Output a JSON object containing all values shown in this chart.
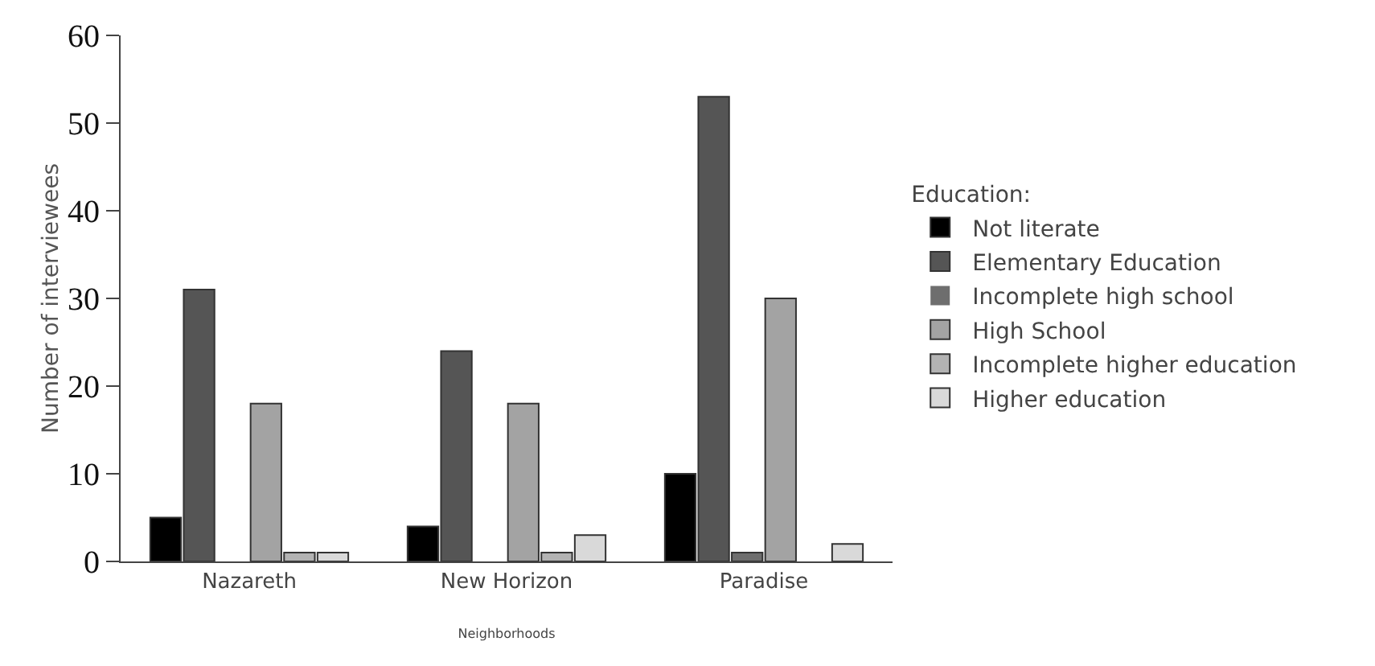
{
  "chart_data": {
    "type": "bar",
    "xlabel": "Neighborhoods",
    "ylabel": "Number of interviewees",
    "legend_title": "Education:",
    "categories": [
      "Nazareth",
      "New Horizon",
      "Paradise"
    ],
    "series": [
      {
        "name": "Not literate",
        "color": "#000000",
        "values": [
          5,
          4,
          10
        ]
      },
      {
        "name": "Elementary Education",
        "color": "#555555",
        "values": [
          31,
          24,
          53
        ]
      },
      {
        "name": "Incomplete high school",
        "color": "#6e6e6e",
        "values": [
          0,
          0,
          1
        ]
      },
      {
        "name": "High School",
        "color": "#a3a3a3",
        "values": [
          18,
          18,
          30
        ]
      },
      {
        "name": "Incomplete higher education",
        "color": "#b3b3b3",
        "values": [
          1,
          1,
          0
        ]
      },
      {
        "name": "Higher education",
        "color": "#d9d9d9",
        "values": [
          1,
          3,
          2
        ]
      }
    ],
    "ylim": [
      0,
      60
    ],
    "yticks": [
      0,
      10,
      20,
      30,
      40,
      50,
      60
    ],
    "grid": false,
    "legend": "right"
  }
}
